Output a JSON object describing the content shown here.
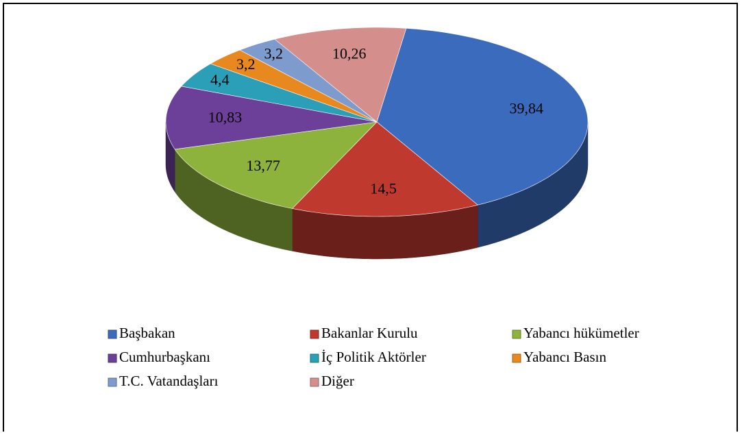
{
  "chart_data": {
    "type": "pie",
    "categories": [
      "Başbakan",
      "Bakanlar Kurulu",
      "Yabancı hükümetler",
      "Cumhurbaşkanı",
      "İç Politik Aktörler",
      "Yabancı Basın",
      "T.C. Vatandaşları",
      "Diğer"
    ],
    "values": [
      39.84,
      14.5,
      13.77,
      10.83,
      4.4,
      3.2,
      3.2,
      10.26
    ],
    "value_labels": [
      "39,84",
      "14,5",
      "13,77",
      "10,83",
      "4,4",
      "3,2",
      "3,2",
      "10,26"
    ],
    "colors": [
      "#3a6bbd",
      "#c0392f",
      "#8db33c",
      "#6c3f98",
      "#2b9fb8",
      "#e8891f",
      "#7e9bcd",
      "#d48e8c"
    ],
    "legend": "bottom"
  }
}
